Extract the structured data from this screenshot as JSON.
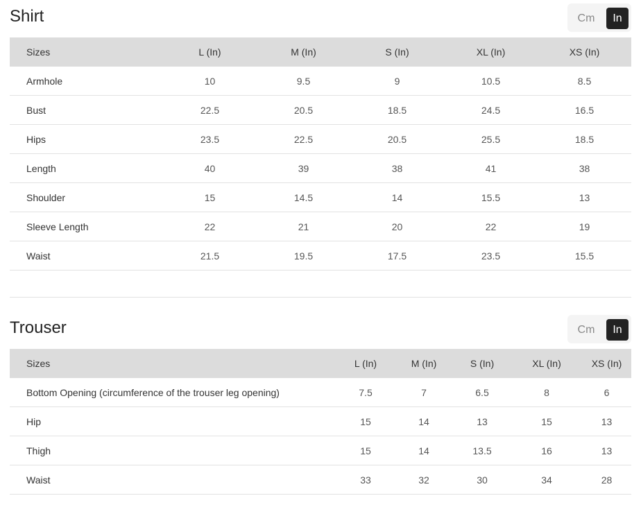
{
  "unit_toggle": {
    "cm": "Cm",
    "in": "In",
    "selected": "In"
  },
  "shirt": {
    "title": "Shirt",
    "headers": [
      "Sizes",
      "L (In)",
      "M (In)",
      "S (In)",
      "XL (In)",
      "XS (In)"
    ],
    "rows": [
      [
        "Armhole",
        "10",
        "9.5",
        "9",
        "10.5",
        "8.5"
      ],
      [
        "Bust",
        "22.5",
        "20.5",
        "18.5",
        "24.5",
        "16.5"
      ],
      [
        "Hips",
        "23.5",
        "22.5",
        "20.5",
        "25.5",
        "18.5"
      ],
      [
        "Length",
        "40",
        "39",
        "38",
        "41",
        "38"
      ],
      [
        "Shoulder",
        "15",
        "14.5",
        "14",
        "15.5",
        "13"
      ],
      [
        "Sleeve Length",
        "22",
        "21",
        "20",
        "22",
        "19"
      ],
      [
        "Waist",
        "21.5",
        "19.5",
        "17.5",
        "23.5",
        "15.5"
      ]
    ]
  },
  "trouser": {
    "title": "Trouser",
    "headers": [
      "Sizes",
      "L (In)",
      "M (In)",
      "S (In)",
      "XL (In)",
      "XS (In)"
    ],
    "rows": [
      [
        "Bottom Opening (circumference of the trouser leg opening)",
        "7.5",
        "7",
        "6.5",
        "8",
        "6"
      ],
      [
        "Hip",
        "15",
        "14",
        "13",
        "15",
        "13"
      ],
      [
        "Thigh",
        "15",
        "14",
        "13.5",
        "16",
        "13"
      ],
      [
        "Waist",
        "33",
        "32",
        "30",
        "34",
        "28"
      ]
    ]
  }
}
